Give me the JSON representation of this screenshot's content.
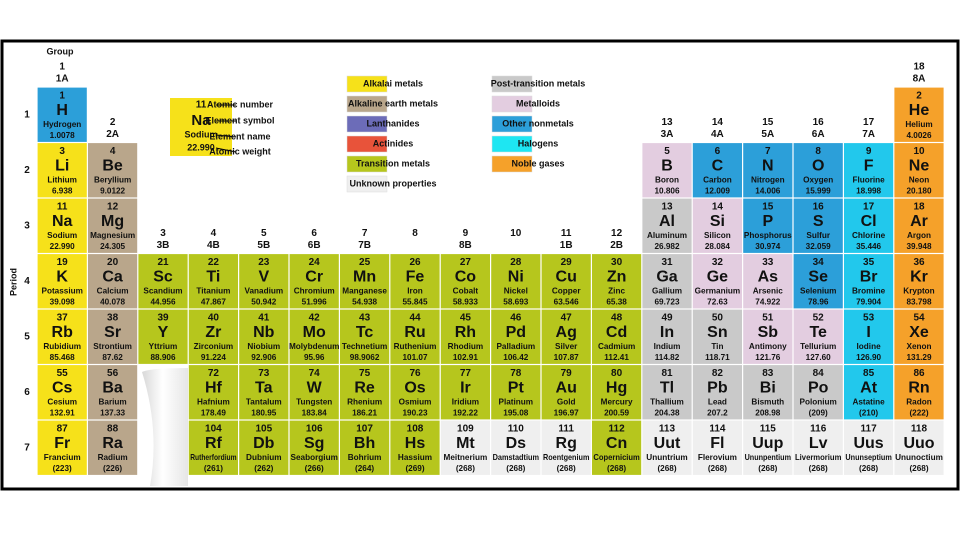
{
  "table": {
    "group_title": "Group",
    "period_title": "Period",
    "groups": [
      {
        "number": "1",
        "label": "1A"
      },
      {
        "number": "2",
        "label": "2A"
      },
      {
        "number": "3",
        "label": "3B"
      },
      {
        "number": "4",
        "label": "4B"
      },
      {
        "number": "5",
        "label": "5B"
      },
      {
        "number": "6",
        "label": "6B"
      },
      {
        "number": "7",
        "label": "7B"
      },
      {
        "number": "8",
        "label": null
      },
      {
        "number": "9",
        "label": "8B"
      },
      {
        "number": "10",
        "label": null
      },
      {
        "number": "11",
        "label": "1B"
      },
      {
        "number": "12",
        "label": "2B"
      },
      {
        "number": "13",
        "label": "3A"
      },
      {
        "number": "14",
        "label": "4A"
      },
      {
        "number": "15",
        "label": "5A"
      },
      {
        "number": "16",
        "label": "6A"
      },
      {
        "number": "17",
        "label": "7A"
      },
      {
        "number": "18",
        "label": "8A"
      }
    ],
    "legend": [
      {
        "label": "Alkalai metals",
        "color": "#f6e11a"
      },
      {
        "label": "Alkaline earth metals",
        "color": "#b9a68b"
      },
      {
        "label": "Lanthanides",
        "color": "#6c6cb8"
      },
      {
        "label": "Actinides",
        "color": "#e8533a"
      },
      {
        "label": "Transition metals",
        "color": "#b6c61d"
      },
      {
        "label": "Unknown properties",
        "color": "#efefef"
      },
      {
        "label": "Post-transition metals",
        "color": "#c9c9c9"
      },
      {
        "label": "Metalloids",
        "color": "#e3cde0"
      },
      {
        "label": "Other nonmetals",
        "color": "#2c9fd9"
      },
      {
        "label": "Halogens",
        "color": "#1ee6f2"
      },
      {
        "label": "Noble gases",
        "color": "#f5a12a"
      }
    ],
    "key": {
      "n": 11,
      "s": "Na",
      "name": "Sodium",
      "w": "22.990",
      "color": "#f6e11a",
      "labels": [
        "Atomic number",
        "Element symbol",
        "Element name",
        "Atomic weight"
      ]
    },
    "periods": [
      {
        "label": "1",
        "cells": [
          {
            "n": 1,
            "s": "H",
            "name": "Hydrogen",
            "w": "1.0078",
            "color": "#2c9fd9"
          },
          null,
          null,
          null,
          null,
          null,
          null,
          null,
          null,
          null,
          null,
          null,
          null,
          null,
          null,
          null,
          null,
          {
            "n": 2,
            "s": "He",
            "name": "Helium",
            "w": "4.0026",
            "color": "#f5a12a"
          }
        ]
      },
      {
        "label": "2",
        "cells": [
          {
            "n": 3,
            "s": "Li",
            "name": "Lithium",
            "w": "6.938",
            "color": "#f6e11a"
          },
          {
            "n": 4,
            "s": "Be",
            "name": "Beryllium",
            "w": "9.0122",
            "color": "#b9a68b"
          },
          null,
          null,
          null,
          null,
          null,
          null,
          null,
          null,
          null,
          null,
          {
            "n": 5,
            "s": "B",
            "name": "Boron",
            "w": "10.806",
            "color": "#e3cde0"
          },
          {
            "n": 6,
            "s": "C",
            "name": "Carbon",
            "w": "12.009",
            "color": "#2c9fd9"
          },
          {
            "n": 7,
            "s": "N",
            "name": "Nitrogen",
            "w": "14.006",
            "color": "#2c9fd9"
          },
          {
            "n": 8,
            "s": "O",
            "name": "Oxygen",
            "w": "15.999",
            "color": "#2c9fd9"
          },
          {
            "n": 9,
            "s": "F",
            "name": "Fluorine",
            "w": "18.998",
            "color": "#22c8ec"
          },
          {
            "n": 10,
            "s": "Ne",
            "name": "Neon",
            "w": "20.180",
            "color": "#f5a12a"
          }
        ]
      },
      {
        "label": "3",
        "cells": [
          {
            "n": 11,
            "s": "Na",
            "name": "Sodium",
            "w": "22.990",
            "color": "#f6e11a"
          },
          {
            "n": 12,
            "s": "Mg",
            "name": "Magnesium",
            "w": "24.305",
            "color": "#b9a68b"
          },
          null,
          null,
          null,
          null,
          null,
          null,
          null,
          null,
          null,
          null,
          {
            "n": 13,
            "s": "Al",
            "name": "Aluminum",
            "w": "26.982",
            "color": "#c9c9c9"
          },
          {
            "n": 14,
            "s": "Si",
            "name": "Silicon",
            "w": "28.084",
            "color": "#e3cde0"
          },
          {
            "n": 15,
            "s": "P",
            "name": "Phosphorus",
            "w": "30.974",
            "color": "#2c9fd9"
          },
          {
            "n": 16,
            "s": "S",
            "name": "Sulfur",
            "w": "32.059",
            "color": "#2c9fd9"
          },
          {
            "n": 17,
            "s": "Cl",
            "name": "Chlorine",
            "w": "35.446",
            "color": "#22c8ec"
          },
          {
            "n": 18,
            "s": "Ar",
            "name": "Argon",
            "w": "39.948",
            "color": "#f5a12a"
          }
        ]
      },
      {
        "label": "4",
        "cells": [
          {
            "n": 19,
            "s": "K",
            "name": "Potassium",
            "w": "39.098",
            "color": "#f6e11a"
          },
          {
            "n": 20,
            "s": "Ca",
            "name": "Calcium",
            "w": "40.078",
            "color": "#b9a68b"
          },
          {
            "n": 21,
            "s": "Sc",
            "name": "Scandium",
            "w": "44.956",
            "color": "#b6c61d"
          },
          {
            "n": 22,
            "s": "Ti",
            "name": "Titanium",
            "w": "47.867",
            "color": "#b6c61d"
          },
          {
            "n": 23,
            "s": "V",
            "name": "Vanadium",
            "w": "50.942",
            "color": "#b6c61d"
          },
          {
            "n": 24,
            "s": "Cr",
            "name": "Chromium",
            "w": "51.996",
            "color": "#b6c61d"
          },
          {
            "n": 25,
            "s": "Mn",
            "name": "Manganese",
            "w": "54.938",
            "color": "#b6c61d"
          },
          {
            "n": 26,
            "s": "Fe",
            "name": "Iron",
            "w": "55.845",
            "color": "#b6c61d"
          },
          {
            "n": 27,
            "s": "Co",
            "name": "Cobalt",
            "w": "58.933",
            "color": "#b6c61d"
          },
          {
            "n": 28,
            "s": "Ni",
            "name": "Nickel",
            "w": "58.693",
            "color": "#b6c61d"
          },
          {
            "n": 29,
            "s": "Cu",
            "name": "Copper",
            "w": "63.546",
            "color": "#b6c61d"
          },
          {
            "n": 30,
            "s": "Zn",
            "name": "Zinc",
            "w": "65.38",
            "color": "#b6c61d"
          },
          {
            "n": 31,
            "s": "Ga",
            "name": "Gallium",
            "w": "69.723",
            "color": "#c9c9c9"
          },
          {
            "n": 32,
            "s": "Ge",
            "name": "Germanium",
            "w": "72.63",
            "color": "#e3cde0"
          },
          {
            "n": 33,
            "s": "As",
            "name": "Arsenic",
            "w": "74.922",
            "color": "#e3cde0"
          },
          {
            "n": 34,
            "s": "Se",
            "name": "Selenium",
            "w": "78.96",
            "color": "#2c9fd9"
          },
          {
            "n": 35,
            "s": "Br",
            "name": "Bromine",
            "w": "79.904",
            "color": "#22c8ec"
          },
          {
            "n": 36,
            "s": "Kr",
            "name": "Krypton",
            "w": "83.798",
            "color": "#f5a12a"
          }
        ]
      },
      {
        "label": "5",
        "cells": [
          {
            "n": 37,
            "s": "Rb",
            "name": "Rubidium",
            "w": "85.468",
            "color": "#f6e11a"
          },
          {
            "n": 38,
            "s": "Sr",
            "name": "Strontium",
            "w": "87.62",
            "color": "#b9a68b"
          },
          {
            "n": 39,
            "s": "Y",
            "name": "Yttrium",
            "w": "88.906",
            "color": "#b6c61d"
          },
          {
            "n": 40,
            "s": "Zr",
            "name": "Zirconium",
            "w": "91.224",
            "color": "#b6c61d"
          },
          {
            "n": 41,
            "s": "Nb",
            "name": "Niobium",
            "w": "92.906",
            "color": "#b6c61d"
          },
          {
            "n": 42,
            "s": "Mo",
            "name": "Molybdenum",
            "w": "95.96",
            "color": "#b6c61d"
          },
          {
            "n": 43,
            "s": "Tc",
            "name": "Technetium",
            "w": "98.9062",
            "color": "#b6c61d"
          },
          {
            "n": 44,
            "s": "Ru",
            "name": "Ruthenium",
            "w": "101.07",
            "color": "#b6c61d"
          },
          {
            "n": 45,
            "s": "Rh",
            "name": "Rhodium",
            "w": "102.91",
            "color": "#b6c61d"
          },
          {
            "n": 46,
            "s": "Pd",
            "name": "Palladium",
            "w": "106.42",
            "color": "#b6c61d"
          },
          {
            "n": 47,
            "s": "Ag",
            "name": "Silver",
            "w": "107.87",
            "color": "#b6c61d"
          },
          {
            "n": 48,
            "s": "Cd",
            "name": "Cadmium",
            "w": "112.41",
            "color": "#b6c61d"
          },
          {
            "n": 49,
            "s": "In",
            "name": "Indium",
            "w": "114.82",
            "color": "#c9c9c9"
          },
          {
            "n": 50,
            "s": "Sn",
            "name": "Tin",
            "w": "118.71",
            "color": "#c9c9c9"
          },
          {
            "n": 51,
            "s": "Sb",
            "name": "Antimony",
            "w": "121.76",
            "color": "#e3cde0"
          },
          {
            "n": 52,
            "s": "Te",
            "name": "Tellurium",
            "w": "127.60",
            "color": "#e3cde0"
          },
          {
            "n": 53,
            "s": "I",
            "name": "Iodine",
            "w": "126.90",
            "color": "#22c8ec"
          },
          {
            "n": 54,
            "s": "Xe",
            "name": "Xenon",
            "w": "131.29",
            "color": "#f5a12a"
          }
        ]
      },
      {
        "label": "6",
        "cells": [
          {
            "n": 55,
            "s": "Cs",
            "name": "Cesium",
            "w": "132.91",
            "color": "#f6e11a"
          },
          {
            "n": 56,
            "s": "Ba",
            "name": "Barium",
            "w": "137.33",
            "color": "#b9a68b"
          },
          null,
          {
            "n": 72,
            "s": "Hf",
            "name": "Hafnium",
            "w": "178.49",
            "color": "#b6c61d"
          },
          {
            "n": 73,
            "s": "Ta",
            "name": "Tantalum",
            "w": "180.95",
            "color": "#b6c61d"
          },
          {
            "n": 74,
            "s": "W",
            "name": "Tungsten",
            "w": "183.84",
            "color": "#b6c61d"
          },
          {
            "n": 75,
            "s": "Re",
            "name": "Rhenium",
            "w": "186.21",
            "color": "#b6c61d"
          },
          {
            "n": 76,
            "s": "Os",
            "name": "Osmium",
            "w": "190.23",
            "color": "#b6c61d"
          },
          {
            "n": 77,
            "s": "Ir",
            "name": "Iridium",
            "w": "192.22",
            "color": "#b6c61d"
          },
          {
            "n": 78,
            "s": "Pt",
            "name": "Platinum",
            "w": "195.08",
            "color": "#b6c61d"
          },
          {
            "n": 79,
            "s": "Au",
            "name": "Gold",
            "w": "196.97",
            "color": "#b6c61d"
          },
          {
            "n": 80,
            "s": "Hg",
            "name": "Mercury",
            "w": "200.59",
            "color": "#b6c61d"
          },
          {
            "n": 81,
            "s": "Tl",
            "name": "Thallium",
            "w": "204.38",
            "color": "#c9c9c9"
          },
          {
            "n": 82,
            "s": "Pb",
            "name": "Lead",
            "w": "207.2",
            "color": "#c9c9c9"
          },
          {
            "n": 83,
            "s": "Bi",
            "name": "Bismuth",
            "w": "208.98",
            "color": "#c9c9c9"
          },
          {
            "n": 84,
            "s": "Po",
            "name": "Polonium",
            "w": "(209)",
            "color": "#c9c9c9"
          },
          {
            "n": 85,
            "s": "At",
            "name": "Astatine",
            "w": "(210)",
            "color": "#22c8ec"
          },
          {
            "n": 86,
            "s": "Rn",
            "name": "Radon",
            "w": "(222)",
            "color": "#f5a12a"
          }
        ]
      },
      {
        "label": "7",
        "cells": [
          {
            "n": 87,
            "s": "Fr",
            "name": "Francium",
            "w": "(223)",
            "color": "#f6e11a"
          },
          {
            "n": 88,
            "s": "Ra",
            "name": "Radium",
            "w": "(226)",
            "color": "#b9a68b"
          },
          null,
          {
            "n": 104,
            "s": "Rf",
            "name": "Rutherfordium",
            "w": "(261)",
            "color": "#b6c61d"
          },
          {
            "n": 105,
            "s": "Db",
            "name": "Dubnium",
            "w": "(262)",
            "color": "#b6c61d"
          },
          {
            "n": 106,
            "s": "Sg",
            "name": "Seaborgium",
            "w": "(266)",
            "color": "#b6c61d"
          },
          {
            "n": 107,
            "s": "Bh",
            "name": "Bohrium",
            "w": "(264)",
            "color": "#b6c61d"
          },
          {
            "n": 108,
            "s": "Hs",
            "name": "Hassium",
            "w": "(269)",
            "color": "#b6c61d"
          },
          {
            "n": 109,
            "s": "Mt",
            "name": "Meitnerium",
            "w": "(268)",
            "color": "#efefef"
          },
          {
            "n": 110,
            "s": "Ds",
            "name": "Damstadtium",
            "w": "(268)",
            "color": "#efefef"
          },
          {
            "n": 111,
            "s": "Rg",
            "name": "Roentgenium",
            "w": "(268)",
            "color": "#efefef"
          },
          {
            "n": 112,
            "s": "Cn",
            "name": "Copernicium",
            "w": "(268)",
            "color": "#b6c61d"
          },
          {
            "n": 113,
            "s": "Uut",
            "name": "Ununtrium",
            "w": "(268)",
            "color": "#efefef"
          },
          {
            "n": 114,
            "s": "Fl",
            "name": "Flerovium",
            "w": "(268)",
            "color": "#efefef"
          },
          {
            "n": 115,
            "s": "Uup",
            "name": "Ununpentium",
            "w": "(268)",
            "color": "#efefef"
          },
          {
            "n": 116,
            "s": "Lv",
            "name": "Livermorium",
            "w": "(268)",
            "color": "#efefef"
          },
          {
            "n": 117,
            "s": "Uus",
            "name": "Ununseptium",
            "w": "(268)",
            "color": "#efefef"
          },
          {
            "n": 118,
            "s": "Uuo",
            "name": "Ununoctium",
            "w": "(268)",
            "color": "#efefef"
          }
        ]
      }
    ]
  }
}
